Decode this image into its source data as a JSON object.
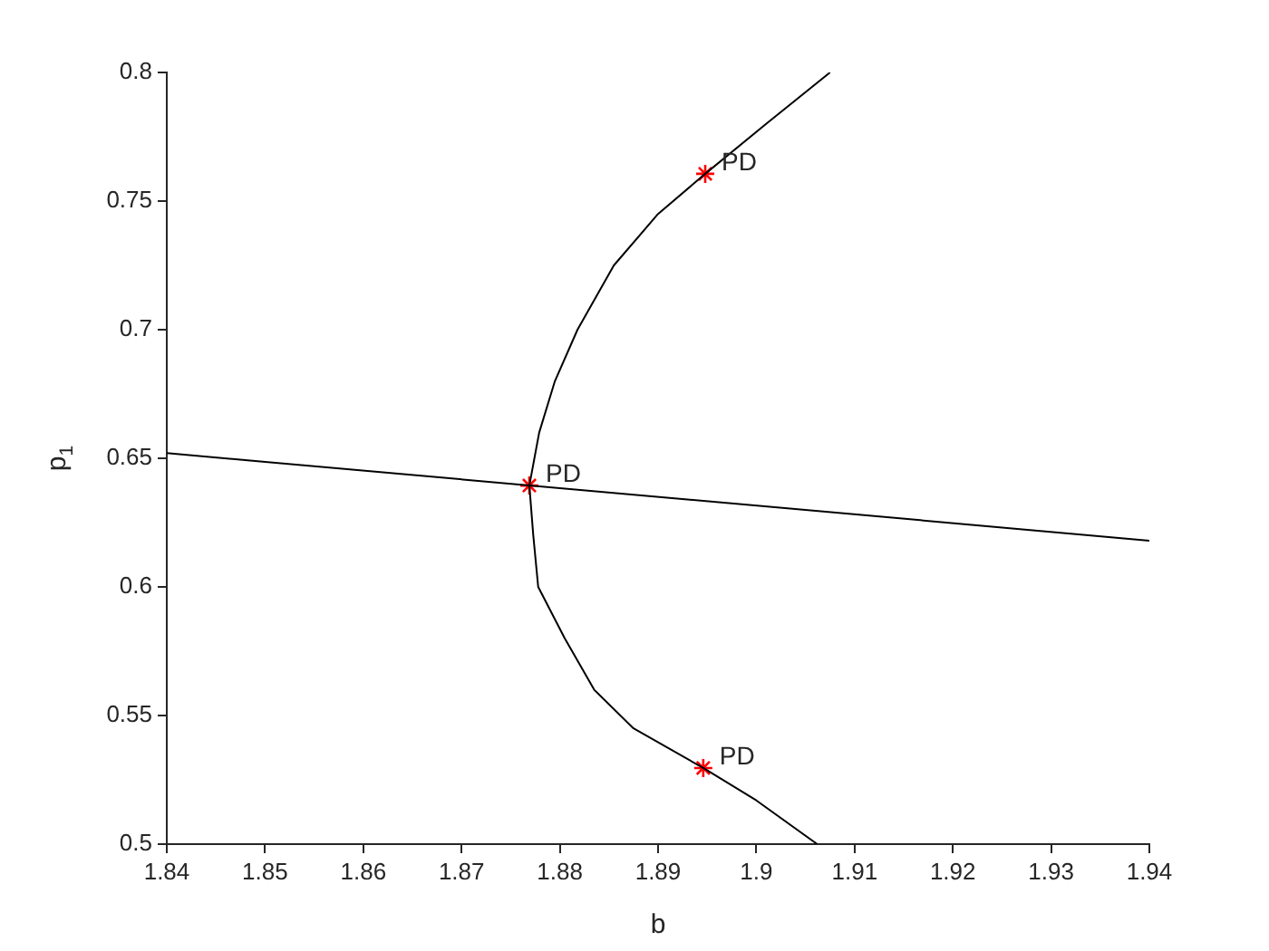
{
  "chart_data": {
    "type": "line",
    "xlabel": "b",
    "ylabel": "p$_{1}$",
    "xlim": [
      1.84,
      1.94
    ],
    "xticks": [
      1.84,
      1.85,
      1.86,
      1.87,
      1.88,
      1.89,
      {
        "value": 1.9,
        "label": "1.9"
      },
      1.91,
      1.92,
      1.93,
      1.94
    ],
    "ylim": [
      0.5,
      0.8
    ],
    "yticks": [
      0.5,
      0.55,
      {
        "value": 0.6,
        "label": "0.6"
      },
      0.65,
      {
        "value": 0.7,
        "label": "0.7"
      },
      0.75,
      {
        "value": 0.8,
        "label": "0.8"
      }
    ],
    "grid": false,
    "legend": false,
    "line_style": "solid",
    "series": [
      {
        "color": "#000000",
        "x": [
          1.84,
          1.94
        ],
        "values": [
          0.652,
          0.618
        ]
      },
      {
        "color": "#000000",
        "x": [
          1.9075,
          1.901,
          1.8948,
          1.89,
          1.8855,
          1.8818,
          1.8795,
          1.8779,
          1.8769,
          1.8773,
          1.8778,
          1.8805,
          1.8835,
          1.8875,
          1.8946,
          1.9,
          1.9062
        ],
        "values": [
          0.8,
          0.78,
          0.7606,
          0.745,
          0.725,
          0.7,
          0.68,
          0.66,
          0.6394,
          0.62,
          0.6,
          0.58,
          0.56,
          0.545,
          0.5296,
          0.517,
          0.5
        ]
      },
      {
        "type": "scatter",
        "color": "#ff0000",
        "marker": "cross",
        "x": [
          1.8948,
          1.8769,
          1.8946
        ],
        "values": [
          0.7606,
          0.6394,
          0.5296
        ]
      }
    ],
    "annotations": [
      {
        "text": "PD",
        "x": 1.8948,
        "y": 0.7606
      },
      {
        "text": "PD",
        "x": 1.8769,
        "y": 0.6394
      },
      {
        "text": "PD",
        "x": 1.8946,
        "y": 0.5296
      }
    ]
  }
}
